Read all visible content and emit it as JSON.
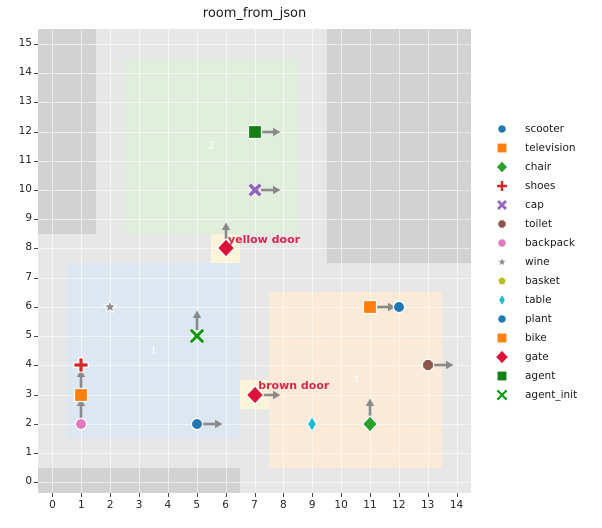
{
  "title": "room_from_json",
  "chart_data": {
    "type": "scatter",
    "title": "room_from_json",
    "xlim": [
      -0.5,
      14.5
    ],
    "ylim": [
      -0.37,
      15.51
    ],
    "x_ticks": [
      0,
      1,
      2,
      3,
      4,
      5,
      6,
      7,
      8,
      9,
      10,
      11,
      12,
      13,
      14
    ],
    "y_ticks": [
      0,
      1,
      2,
      3,
      4,
      5,
      6,
      7,
      8,
      9,
      10,
      11,
      12,
      13,
      14,
      15
    ],
    "grid": true,
    "background_color": "#e7e7e7",
    "wall_color": "#d2d2d2",
    "arrow_color": "#8a8a8a",
    "room_label_color": "#ffffff",
    "walls": [
      {
        "name": "wall-top-left",
        "x0": -0.5,
        "y0": 8.5,
        "x1": 1.5,
        "y1": 15.51
      },
      {
        "name": "wall-top-right",
        "x0": 9.5,
        "y0": 7.5,
        "x1": 14.5,
        "y1": 15.51
      },
      {
        "name": "wall-bottom",
        "x0": -0.5,
        "y0": -0.37,
        "x1": 6.5,
        "y1": 0.5
      }
    ],
    "rooms": [
      {
        "label": "1",
        "x0": 0.5,
        "y0": 1.5,
        "x1": 6.5,
        "y1": 7.5,
        "fill": "#dde7f2"
      },
      {
        "label": "2",
        "x0": 2.5,
        "y0": 8.5,
        "x1": 8.5,
        "y1": 14.5,
        "fill": "#e1eedc"
      },
      {
        "label": "3",
        "x0": 7.5,
        "y0": 0.5,
        "x1": 13.5,
        "y1": 6.5,
        "fill": "#faead7"
      }
    ],
    "door_cells": [
      {
        "name": "yellow-door-cell",
        "x0": 5.5,
        "y0": 7.5,
        "x1": 6.5,
        "y1": 8.5,
        "fill": "#fcf4d8"
      },
      {
        "name": "brown-door-cell",
        "x0": 6.5,
        "y0": 2.5,
        "x1": 7.5,
        "y1": 3.5,
        "fill": "#fcf4d8"
      }
    ],
    "objects": [
      {
        "name": "agent",
        "shape": "square",
        "color": "#128012",
        "x": 7,
        "y": 12,
        "arrow": "right"
      },
      {
        "name": "cap",
        "shape": "x",
        "color": "#9467bd",
        "x": 7,
        "y": 10,
        "arrow": "right"
      },
      {
        "name": "gate-yellow",
        "shape": "diamond",
        "color": "#dc143c",
        "x": 6,
        "y": 8,
        "arrow": "up"
      },
      {
        "name": "wine",
        "shape": "star",
        "color": "#8f8f8f",
        "x": 2,
        "y": 6,
        "arrow": null
      },
      {
        "name": "agent_init",
        "shape": "x-thin",
        "color": "#0a9a0a",
        "x": 5,
        "y": 5,
        "arrow": "up"
      },
      {
        "name": "shoes",
        "shape": "plus",
        "color": "#d62728",
        "x": 1,
        "y": 4,
        "arrow": null
      },
      {
        "name": "television",
        "shape": "square",
        "color": "#ff7f0e",
        "x": 1,
        "y": 3,
        "arrow": "up"
      },
      {
        "name": "backpack",
        "shape": "circle",
        "color": "#e377c2",
        "x": 1,
        "y": 2,
        "arrow": "up"
      },
      {
        "name": "scooter",
        "shape": "circle",
        "color": "#1f77b4",
        "x": 5,
        "y": 2,
        "arrow": "right"
      },
      {
        "name": "gate-brown",
        "shape": "diamond",
        "color": "#dc143c",
        "x": 7,
        "y": 3,
        "arrow": "right"
      },
      {
        "name": "table",
        "shape": "thin-diamond",
        "color": "#17becf",
        "x": 9,
        "y": 2,
        "arrow": null
      },
      {
        "name": "chair",
        "shape": "diamond-sm",
        "color": "#2ca02c",
        "x": 11,
        "y": 2,
        "arrow": "up"
      },
      {
        "name": "bike",
        "shape": "square",
        "color": "#ff7f0e",
        "x": 11,
        "y": 6,
        "arrow": "right"
      },
      {
        "name": "plant",
        "shape": "circle",
        "color": "#1f77b4",
        "x": 12,
        "y": 6,
        "arrow": null
      },
      {
        "name": "toilet",
        "shape": "octagon",
        "color": "#8c564b",
        "x": 13,
        "y": 4,
        "arrow": "right"
      }
    ],
    "annotations": [
      {
        "name": "yellow-door-label",
        "text": "yellow door",
        "x": 6.08,
        "y": 8.3,
        "color": "#d2294d"
      },
      {
        "name": "brown-door-label",
        "text": "brown door",
        "x": 7.13,
        "y": 3.3,
        "color": "#d2294d"
      }
    ],
    "legend": {
      "position": "right-outside",
      "entries": [
        {
          "label": "scooter",
          "shape": "circle",
          "color": "#1f77b4"
        },
        {
          "label": "television",
          "shape": "square",
          "color": "#ff7f0e"
        },
        {
          "label": "chair",
          "shape": "diamond-sm",
          "color": "#2ca02c"
        },
        {
          "label": "shoes",
          "shape": "plus",
          "color": "#d62728"
        },
        {
          "label": "cap",
          "shape": "x",
          "color": "#9467bd"
        },
        {
          "label": "toilet",
          "shape": "octagon",
          "color": "#8c564b"
        },
        {
          "label": "backpack",
          "shape": "circle",
          "color": "#e377c2"
        },
        {
          "label": "wine",
          "shape": "star",
          "color": "#8f8f8f"
        },
        {
          "label": "basket",
          "shape": "pentagon",
          "color": "#bcbd22"
        },
        {
          "label": "table",
          "shape": "thin-diamond",
          "color": "#17becf"
        },
        {
          "label": "plant",
          "shape": "circle",
          "color": "#1f77b4"
        },
        {
          "label": "bike",
          "shape": "square",
          "color": "#ff7f0e"
        },
        {
          "label": "gate",
          "shape": "diamond",
          "color": "#dc143c"
        },
        {
          "label": "agent",
          "shape": "square",
          "color": "#128012"
        },
        {
          "label": "agent_init",
          "shape": "x-thin",
          "color": "#0a9a0a"
        }
      ]
    }
  }
}
